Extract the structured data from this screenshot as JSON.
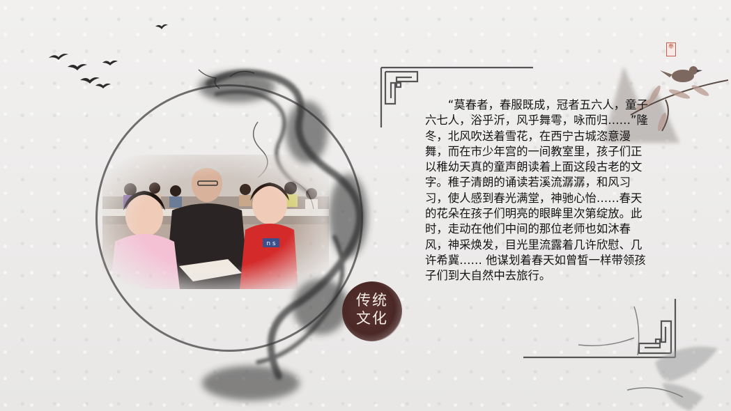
{
  "paragraph": "“莫春者，春服既成，冠者五六人，童子六七人，浴乎沂，风乎舞雩，咏而归……”隆冬，北风吹送着雪花，在西宁古城恣意漫舞，而在市少年宫的一间教室里，孩子们正以稚幼天真的童声朗读着上面这段古老的文字。稚子清朗的诵读若溪流潺潺，和风习习，使人感到春光满堂，神驰心怡……春天的花朵在孩子们明亮的眼眸里次第绽放。此时，走动在他们中间的那位老师也如沐春风，神采焕发，目光里流露着几许欣慰、几许希冀…… 他谋划着春天如曾皙一样带领孩子们到大自然中去旅行。",
  "seal_line1": "传统",
  "seal_line2": "文化",
  "stamp_text": "奉",
  "photo_badge": "n s",
  "colors": {
    "background": "#ecebea",
    "ink": "#141414",
    "seal": "#4a2826",
    "frame": "#555555",
    "stamp": "#c65b4f"
  }
}
